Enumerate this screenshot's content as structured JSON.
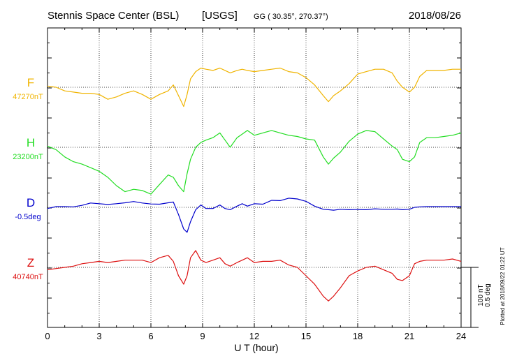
{
  "header": {
    "station": "Stennis Space Center (BSL)",
    "network": "[USGS]",
    "coords": "GG ( 30.35°, 270.37°)",
    "date": "2018/08/26"
  },
  "plotted_note": "Plotted at 2018/09/22 01:22 UT",
  "scale_bar": {
    "nt_label": "100 nT",
    "deg_label": "0.5 deg"
  },
  "chart_data": {
    "type": "line",
    "xlabel": "U T (hour)",
    "xlim": [
      0,
      24
    ],
    "xticks": [
      "0",
      "3",
      "6",
      "9",
      "12",
      "15",
      "18",
      "21",
      "24"
    ],
    "grid": true,
    "series": [
      {
        "name": "F",
        "baseline": "47270nT",
        "color": "#f0b400",
        "x": [
          0,
          0.5,
          1,
          1.5,
          2,
          2.5,
          3,
          3.5,
          4,
          4.5,
          5,
          5.5,
          6,
          6.5,
          7,
          7.3,
          7.6,
          7.9,
          8.1,
          8.3,
          8.6,
          8.9,
          9.2,
          9.6,
          10,
          10.3,
          10.6,
          11,
          11.3,
          11.6,
          12,
          12.5,
          13,
          13.5,
          14,
          14.5,
          15,
          15.5,
          16,
          16.3,
          16.6,
          17,
          17.5,
          18,
          18.5,
          19,
          19.5,
          20,
          20.3,
          20.6,
          21,
          21.3,
          21.6,
          22,
          22.5,
          23,
          23.5,
          24
        ],
        "y": [
          47271,
          47270,
          47267,
          47266,
          47265,
          47265,
          47264,
          47260,
          47262,
          47265,
          47267,
          47264,
          47260,
          47264,
          47267,
          47272,
          47263,
          47254,
          47264,
          47277,
          47283,
          47286,
          47285,
          47284,
          47286,
          47284,
          47282,
          47284,
          47285,
          47284,
          47283,
          47284,
          47285,
          47286,
          47283,
          47282,
          47278,
          47272,
          47263,
          47258,
          47263,
          47267,
          47273,
          47281,
          47283,
          47285,
          47285,
          47282,
          47275,
          47270,
          47266,
          47270,
          47279,
          47284,
          47284,
          47284,
          47285,
          47285
        ]
      },
      {
        "name": "H",
        "baseline": "23200nT",
        "color": "#22dd22",
        "x": [
          0,
          0.5,
          1,
          1.5,
          2,
          2.5,
          3,
          3.5,
          4,
          4.5,
          5,
          5.5,
          6,
          6.5,
          7,
          7.3,
          7.6,
          7.9,
          8.1,
          8.3,
          8.6,
          8.9,
          9.2,
          9.6,
          10,
          10.3,
          10.6,
          11,
          11.3,
          11.6,
          12,
          12.5,
          13,
          13.5,
          14,
          14.5,
          15,
          15.5,
          16,
          16.3,
          16.6,
          17,
          17.5,
          18,
          18.5,
          19,
          19.5,
          20,
          20.3,
          20.6,
          21,
          21.3,
          21.6,
          22,
          22.5,
          23,
          23.5,
          24
        ],
        "y": [
          23201,
          23198,
          23192,
          23188,
          23186,
          23183,
          23180,
          23175,
          23168,
          23163,
          23165,
          23164,
          23161,
          23169,
          23177,
          23175,
          23168,
          23163,
          23178,
          23190,
          23200,
          23204,
          23206,
          23208,
          23212,
          23206,
          23200,
          23208,
          23211,
          23214,
          23210,
          23212,
          23214,
          23212,
          23210,
          23209,
          23207,
          23206,
          23192,
          23186,
          23191,
          23196,
          23205,
          23211,
          23214,
          23213,
          23207,
          23201,
          23198,
          23190,
          23188,
          23192,
          23204,
          23208,
          23208,
          23209,
          23210,
          23212
        ]
      },
      {
        "name": "D",
        "baseline": "-0.5deg",
        "color": "#0000cc",
        "x": [
          0,
          0.5,
          1,
          1.5,
          2,
          2.5,
          3,
          3.5,
          4,
          4.5,
          5,
          5.5,
          6,
          6.5,
          7,
          7.3,
          7.6,
          7.9,
          8.1,
          8.3,
          8.6,
          8.9,
          9.2,
          9.6,
          10,
          10.3,
          10.6,
          11,
          11.3,
          11.6,
          12,
          12.5,
          13,
          13.5,
          14,
          14.5,
          15,
          15.5,
          16,
          16.3,
          16.6,
          17,
          17.5,
          18,
          18.5,
          19,
          19.5,
          20,
          20.3,
          20.6,
          21,
          21.3,
          21.6,
          22,
          22.5,
          23,
          23.5,
          24
        ],
        "y": [
          -0.505,
          -0.497,
          -0.497,
          -0.498,
          -0.492,
          -0.482,
          -0.485,
          -0.488,
          -0.485,
          -0.481,
          -0.476,
          -0.482,
          -0.486,
          -0.487,
          -0.481,
          -0.478,
          -0.53,
          -0.59,
          -0.604,
          -0.56,
          -0.51,
          -0.49,
          -0.505,
          -0.505,
          -0.49,
          -0.505,
          -0.51,
          -0.495,
          -0.485,
          -0.495,
          -0.485,
          -0.487,
          -0.471,
          -0.472,
          -0.462,
          -0.465,
          -0.475,
          -0.495,
          -0.508,
          -0.51,
          -0.512,
          -0.508,
          -0.51,
          -0.509,
          -0.51,
          -0.506,
          -0.508,
          -0.508,
          -0.507,
          -0.51,
          -0.508,
          -0.5,
          -0.498,
          -0.497,
          -0.497,
          -0.497,
          -0.497,
          -0.497
        ]
      },
      {
        "name": "Z",
        "baseline": "40740nT",
        "color": "#dd1111",
        "x": [
          0,
          0.5,
          1,
          1.5,
          2,
          2.5,
          3,
          3.5,
          4,
          4.5,
          5,
          5.5,
          6,
          6.5,
          7,
          7.3,
          7.6,
          7.9,
          8.1,
          8.3,
          8.6,
          8.9,
          9.2,
          9.6,
          10,
          10.3,
          10.6,
          11,
          11.3,
          11.6,
          12,
          12.5,
          13,
          13.5,
          14,
          14.5,
          15,
          15.5,
          16,
          16.3,
          16.6,
          17,
          17.5,
          18,
          18.5,
          19,
          19.5,
          20,
          20.3,
          20.6,
          21,
          21.3,
          21.6,
          22,
          22.5,
          23,
          23.5,
          24
        ],
        "y": [
          40738,
          40739,
          40740,
          40741,
          40743,
          40744,
          40745,
          40744,
          40745,
          40746,
          40746,
          40746,
          40744,
          40748,
          40750,
          40745,
          40733,
          40726,
          40733,
          40748,
          40754,
          40746,
          40744,
          40746,
          40748,
          40743,
          40741,
          40744,
          40746,
          40748,
          40744,
          40745,
          40745,
          40746,
          40742,
          40740,
          40733,
          40726,
          40716,
          40712,
          40716,
          40723,
          40733,
          40737,
          40740,
          40741,
          40738,
          40735,
          40730,
          40729,
          40733,
          40743,
          40745,
          40746,
          40746,
          40746,
          40747,
          40745
        ]
      }
    ]
  }
}
